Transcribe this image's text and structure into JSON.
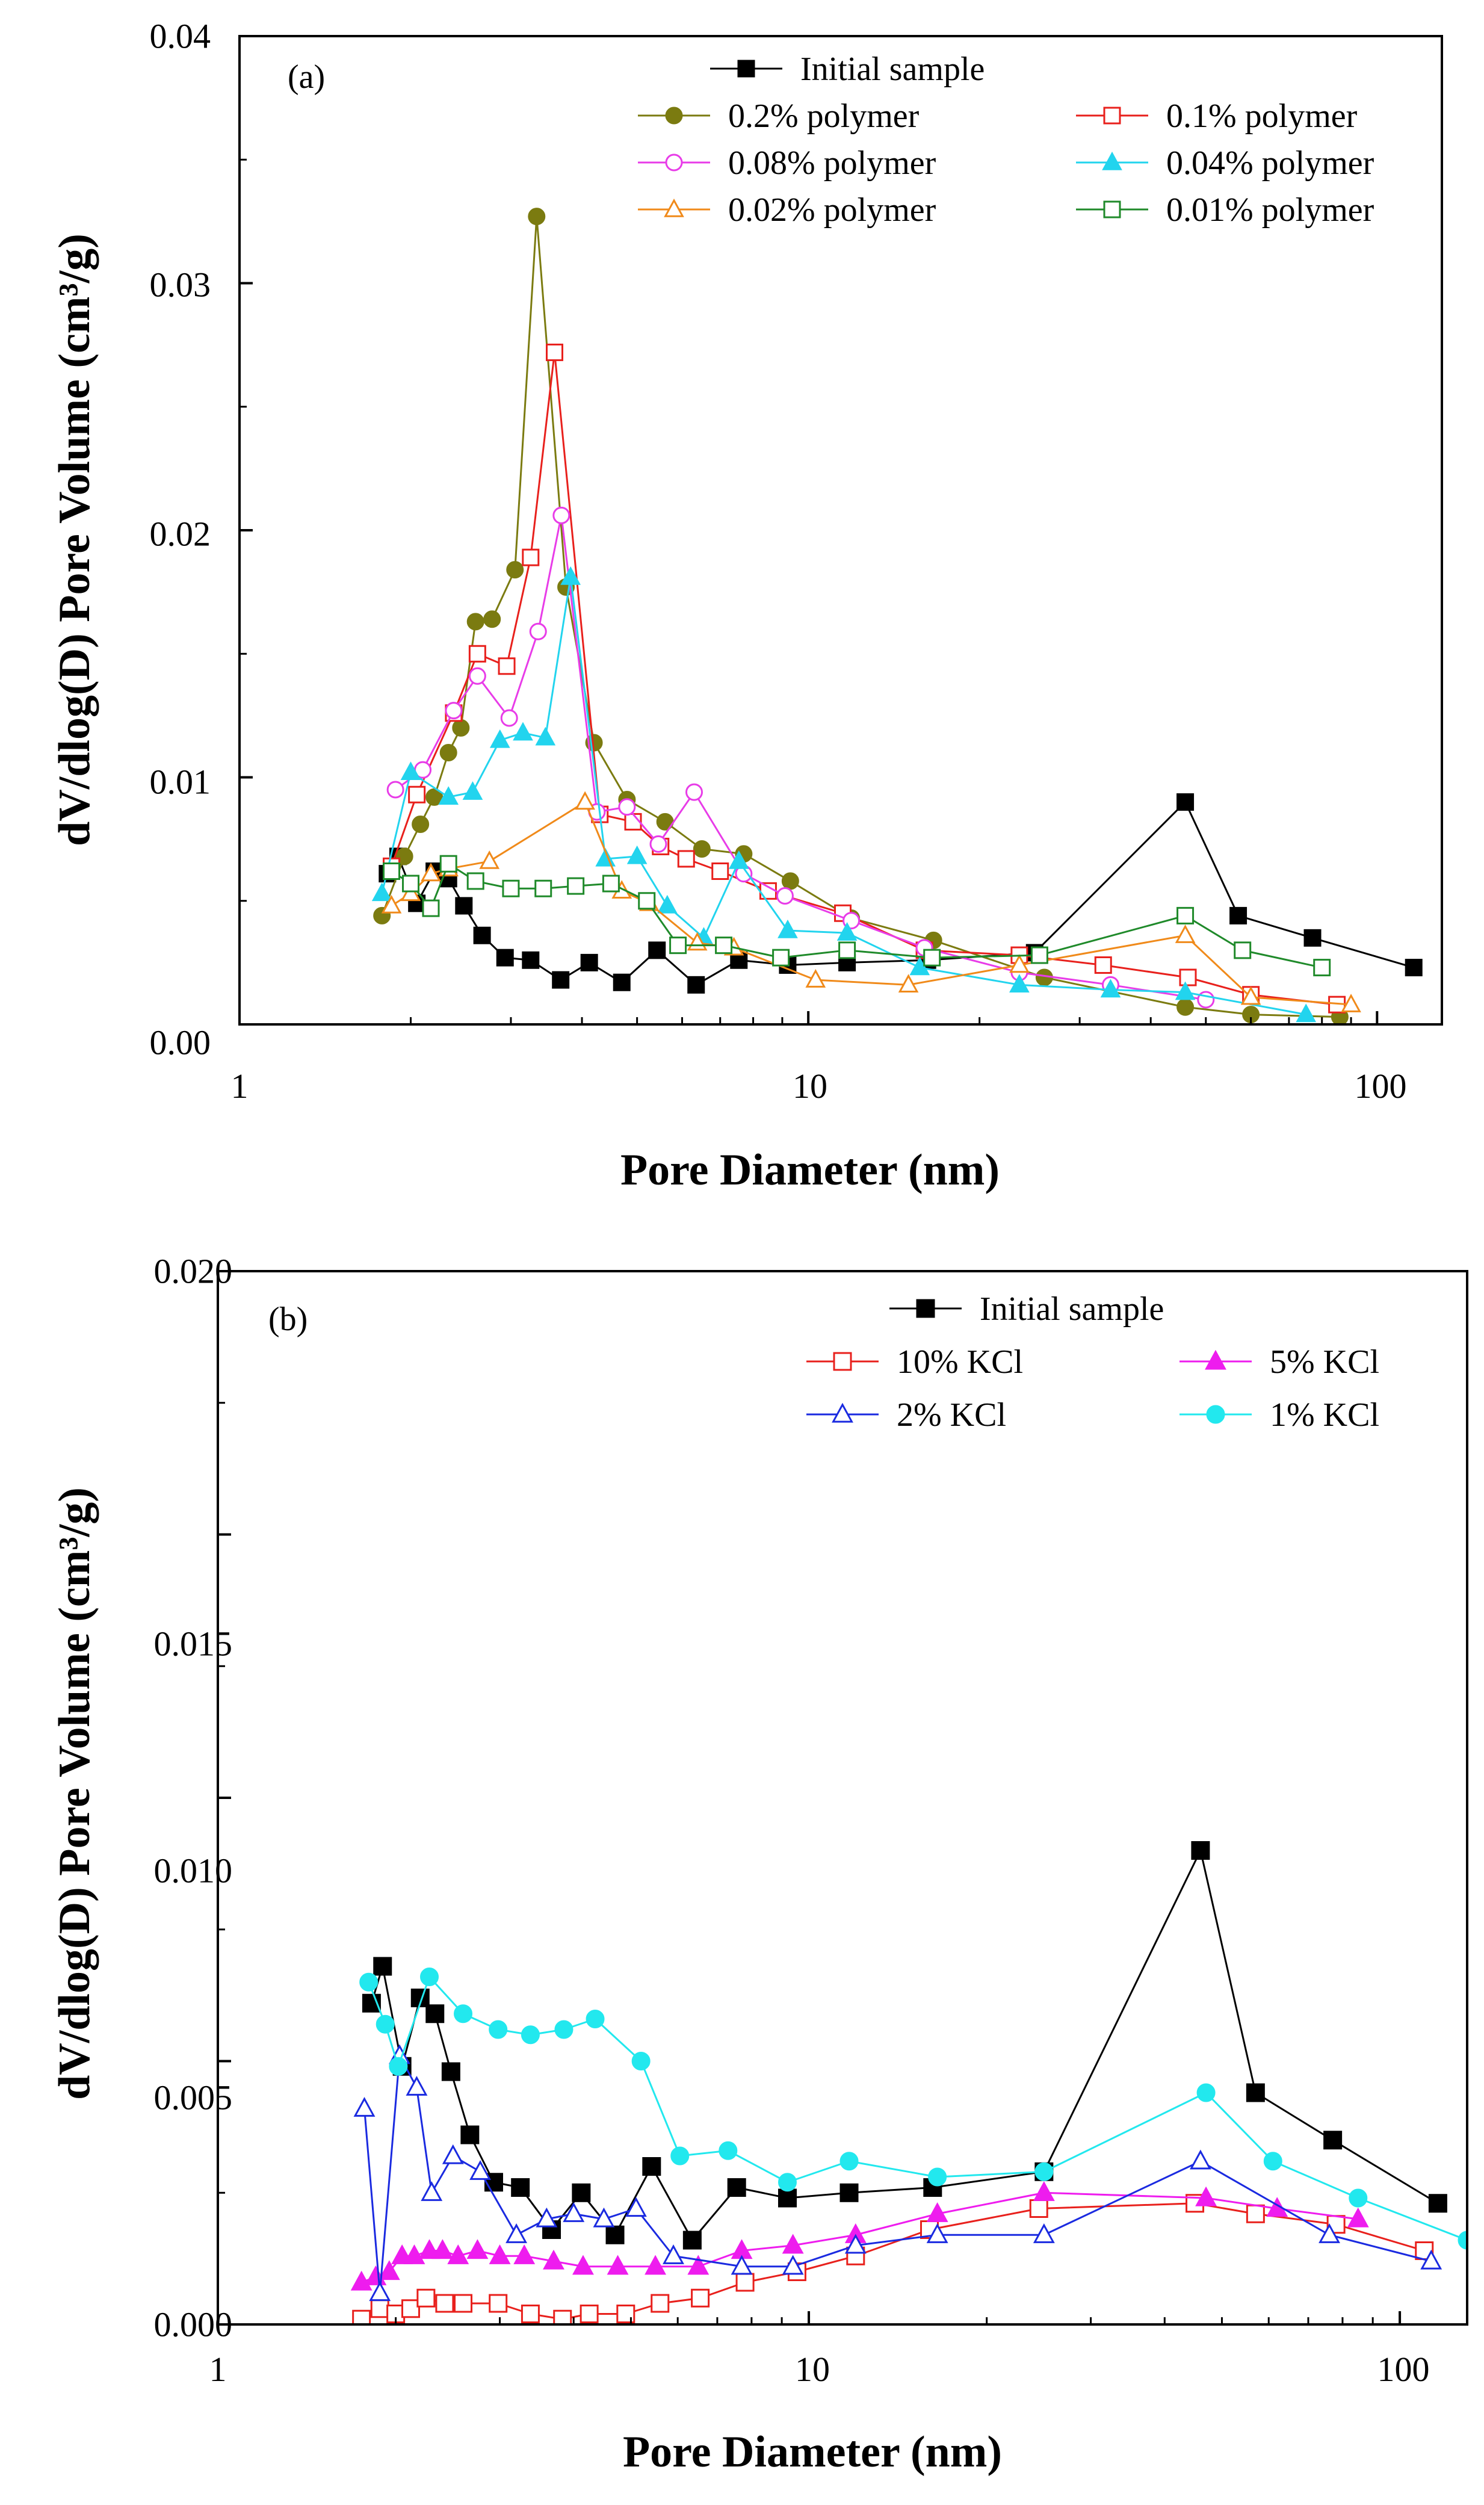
{
  "chart_data": [
    {
      "type": "line",
      "panel_label": "(a)",
      "xlabel": "Pore Diameter (nm)",
      "ylabel": "dV/dlog(D) Pore Volume (cm³/g)",
      "xscale": "log",
      "xlim": [
        1,
        130
      ],
      "ylim": [
        0,
        0.04
      ],
      "xticks": [
        1,
        10,
        100
      ],
      "xtick_labels": [
        "1",
        "10",
        "100"
      ],
      "yticks": [
        0,
        0.01,
        0.02,
        0.03,
        0.04
      ],
      "ytick_labels": [
        "0.00",
        "0.01",
        "0.02",
        "0.03",
        "0.04"
      ],
      "legend_position": "top-right",
      "series": [
        {
          "name": "Initial sample",
          "color": "#000000",
          "marker": "square-filled",
          "x": [
            1.82,
            1.9,
            2.05,
            2.2,
            2.33,
            2.48,
            2.67,
            2.93,
            3.25,
            3.67,
            4.12,
            4.7,
            5.42,
            6.35,
            7.55,
            9.2,
            11.7,
            16.2,
            25.0,
            46.0,
            57.0,
            77.0,
            116.0
          ],
          "y": [
            0.0061,
            0.0068,
            0.0049,
            0.0062,
            0.0059,
            0.0048,
            0.0036,
            0.0027,
            0.0026,
            0.0018,
            0.0025,
            0.0017,
            0.003,
            0.0016,
            0.0026,
            0.0024,
            0.0025,
            0.0026,
            0.0029,
            0.009,
            0.0044,
            0.0035,
            0.0023
          ]
        },
        {
          "name": "0.2% polymer",
          "color": "#7b7b10",
          "marker": "circle-filled",
          "x": [
            1.78,
            1.95,
            2.08,
            2.2,
            2.33,
            2.45,
            2.6,
            2.78,
            3.05,
            3.33,
            3.75,
            4.2,
            4.8,
            5.6,
            6.5,
            7.7,
            9.3,
            11.9,
            16.6,
            26.0,
            46.0,
            60.0,
            86.0
          ],
          "y": [
            0.0044,
            0.0068,
            0.0081,
            0.0092,
            0.011,
            0.012,
            0.0163,
            0.0164,
            0.0184,
            0.0327,
            0.0177,
            0.0114,
            0.0091,
            0.0082,
            0.0071,
            0.0069,
            0.0058,
            0.0043,
            0.0034,
            0.0019,
            0.0007,
            0.0004,
            0.0003
          ]
        },
        {
          "name": "0.1% polymer",
          "color": "#e8201c",
          "marker": "square-open",
          "x": [
            1.85,
            2.05,
            2.38,
            2.62,
            2.95,
            3.25,
            3.58,
            4.3,
            4.92,
            5.5,
            6.1,
            7.0,
            8.5,
            11.5,
            16.0,
            23.5,
            33.0,
            46.5,
            60.0,
            85.0
          ],
          "y": [
            0.0064,
            0.0093,
            0.0126,
            0.015,
            0.0145,
            0.0189,
            0.0272,
            0.0085,
            0.0082,
            0.0072,
            0.0067,
            0.0062,
            0.0054,
            0.0045,
            0.003,
            0.0028,
            0.0024,
            0.0019,
            0.0012,
            0.0008
          ]
        },
        {
          "name": "0.08% polymer",
          "color": "#e83ce8",
          "marker": "circle-open",
          "x": [
            1.88,
            2.1,
            2.38,
            2.62,
            2.98,
            3.35,
            3.68,
            4.25,
            4.8,
            5.45,
            6.3,
            7.7,
            9.1,
            11.9,
            16.0,
            23.5,
            34.0,
            50.0
          ],
          "y": [
            0.0095,
            0.0103,
            0.0127,
            0.0141,
            0.0124,
            0.0159,
            0.0206,
            0.0086,
            0.0088,
            0.0073,
            0.0094,
            0.0061,
            0.0052,
            0.0042,
            0.0031,
            0.0021,
            0.0016,
            0.001
          ]
        },
        {
          "name": "0.04% polymer",
          "color": "#22d4ee",
          "marker": "triangle-filled",
          "x": [
            1.78,
            2.0,
            2.33,
            2.57,
            2.87,
            3.15,
            3.45,
            3.82,
            4.4,
            5.0,
            5.65,
            6.55,
            7.55,
            9.2,
            11.7,
            15.7,
            23.5,
            34.0,
            46.0,
            75.0
          ],
          "y": [
            0.0053,
            0.0102,
            0.0092,
            0.0094,
            0.0115,
            0.0118,
            0.0116,
            0.0181,
            0.0067,
            0.0068,
            0.0048,
            0.0035,
            0.0066,
            0.0038,
            0.0037,
            0.0023,
            0.0016,
            0.0014,
            0.0013,
            0.0004
          ]
        },
        {
          "name": "0.02% polymer",
          "color": "#f08a1a",
          "marker": "triangle-open",
          "x": [
            1.85,
            2.0,
            2.17,
            2.33,
            2.75,
            4.05,
            4.7,
            5.25,
            6.38,
            7.4,
            10.3,
            15.0,
            23.5,
            46.0,
            60.0,
            90.0
          ],
          "y": [
            0.0048,
            0.0053,
            0.0061,
            0.0063,
            0.0066,
            0.009,
            0.0054,
            0.0049,
            0.0033,
            0.0031,
            0.0018,
            0.0016,
            0.0024,
            0.0036,
            0.0011,
            0.0008
          ]
        },
        {
          "name": "0.01% polymer",
          "color": "#1f8a2a",
          "marker": "square-open",
          "x": [
            1.85,
            2.0,
            2.17,
            2.33,
            2.6,
            3.0,
            3.42,
            3.9,
            4.5,
            5.2,
            5.9,
            7.1,
            8.95,
            11.7,
            16.5,
            25.5,
            46.0,
            58.0,
            80.0
          ],
          "y": [
            0.0062,
            0.0057,
            0.0047,
            0.0065,
            0.0058,
            0.0055,
            0.0055,
            0.0056,
            0.0057,
            0.005,
            0.0032,
            0.0032,
            0.0027,
            0.003,
            0.0027,
            0.0028,
            0.0044,
            0.003,
            0.0023
          ]
        }
      ]
    },
    {
      "type": "line",
      "panel_label": "(b)",
      "xlabel": "Pore Diameter (nm)",
      "ylabel": "dV/dlog(D) Pore Volume (cm³/g)",
      "xscale": "log",
      "xlim": [
        1,
        130
      ],
      "ylim": [
        0,
        0.02
      ],
      "xticks": [
        1,
        10,
        100
      ],
      "xtick_labels": [
        "1",
        "10",
        "100"
      ],
      "yticks": [
        0,
        0.005,
        0.01,
        0.015,
        0.02
      ],
      "ytick_labels": [
        "0.000",
        "0.005",
        "0.010",
        "0.015",
        "0.020"
      ],
      "legend_position": "top-right",
      "series": [
        {
          "name": "Initial sample",
          "color": "#000000",
          "marker": "square-filled",
          "x": [
            1.82,
            1.9,
            2.05,
            2.2,
            2.33,
            2.48,
            2.67,
            2.93,
            3.25,
            3.67,
            4.12,
            4.7,
            5.42,
            6.35,
            7.55,
            9.2,
            11.7,
            16.2,
            25.0,
            46.0,
            57.0,
            77.0,
            116.0
          ],
          "y": [
            0.0061,
            0.0068,
            0.0049,
            0.0062,
            0.0059,
            0.0048,
            0.0036,
            0.0027,
            0.0026,
            0.0018,
            0.0025,
            0.0017,
            0.003,
            0.0016,
            0.0026,
            0.0024,
            0.0025,
            0.0026,
            0.0029,
            0.009,
            0.0044,
            0.0035,
            0.0023
          ]
        },
        {
          "name": "10% KCl",
          "color": "#e8201c",
          "marker": "square-open",
          "x": [
            1.75,
            1.88,
            2.0,
            2.12,
            2.25,
            2.42,
            2.6,
            2.98,
            3.38,
            3.83,
            4.25,
            4.9,
            5.6,
            6.55,
            7.8,
            9.55,
            12.0,
            16.0,
            24.5,
            45.0,
            57.0,
            78.0,
            110.0
          ],
          "y": [
            0.0001,
            0.0003,
            0.0002,
            0.0003,
            0.0005,
            0.0004,
            0.0004,
            0.0004,
            0.0002,
            0.0001,
            0.0002,
            0.0002,
            0.0004,
            0.0005,
            0.0008,
            0.001,
            0.0013,
            0.0018,
            0.0022,
            0.0023,
            0.0021,
            0.0019,
            0.0014
          ]
        },
        {
          "name": "5% KCl",
          "color": "#ee1cee",
          "marker": "triangle-filled",
          "x": [
            1.75,
            1.85,
            1.95,
            2.05,
            2.15,
            2.28,
            2.4,
            2.55,
            2.75,
            3.0,
            3.3,
            3.7,
            4.15,
            4.75,
            5.5,
            6.5,
            7.7,
            9.4,
            12.0,
            16.5,
            25.0,
            47.0,
            62.0,
            85.0
          ],
          "y": [
            0.0008,
            0.0009,
            0.001,
            0.0013,
            0.0013,
            0.0014,
            0.0014,
            0.0013,
            0.0014,
            0.0013,
            0.0013,
            0.0012,
            0.0011,
            0.0011,
            0.0011,
            0.0011,
            0.0014,
            0.0015,
            0.0017,
            0.0021,
            0.0025,
            0.0024,
            0.0022,
            0.002
          ]
        },
        {
          "name": "2% KCl",
          "color": "#1a2ae0",
          "marker": "triangle-open",
          "x": [
            1.77,
            1.88,
            2.03,
            2.17,
            2.3,
            2.5,
            2.78,
            3.2,
            3.6,
            4.0,
            4.5,
            5.1,
            5.9,
            7.7,
            9.4,
            12.0,
            16.5,
            25.0,
            46.0,
            76.0,
            113.0
          ],
          "y": [
            0.0041,
            0.0006,
            0.0051,
            0.0045,
            0.0025,
            0.0032,
            0.0029,
            0.0017,
            0.002,
            0.0021,
            0.002,
            0.0022,
            0.0013,
            0.0011,
            0.0011,
            0.0015,
            0.0017,
            0.0017,
            0.0031,
            0.0017,
            0.0012
          ]
        },
        {
          "name": "1% KCl",
          "color": "#22e8ee",
          "marker": "circle-filled",
          "x": [
            1.8,
            1.92,
            2.02,
            2.28,
            2.6,
            2.98,
            3.38,
            3.85,
            4.35,
            5.2,
            6.05,
            7.3,
            9.2,
            11.7,
            16.5,
            25.0,
            47.0,
            61.0,
            85.0,
            130.0
          ],
          "y": [
            0.0065,
            0.0057,
            0.0049,
            0.0066,
            0.0059,
            0.0056,
            0.0055,
            0.0056,
            0.0058,
            0.005,
            0.0032,
            0.0033,
            0.0027,
            0.0031,
            0.0028,
            0.0029,
            0.0044,
            0.0031,
            0.0024,
            0.0016
          ]
        }
      ]
    }
  ]
}
